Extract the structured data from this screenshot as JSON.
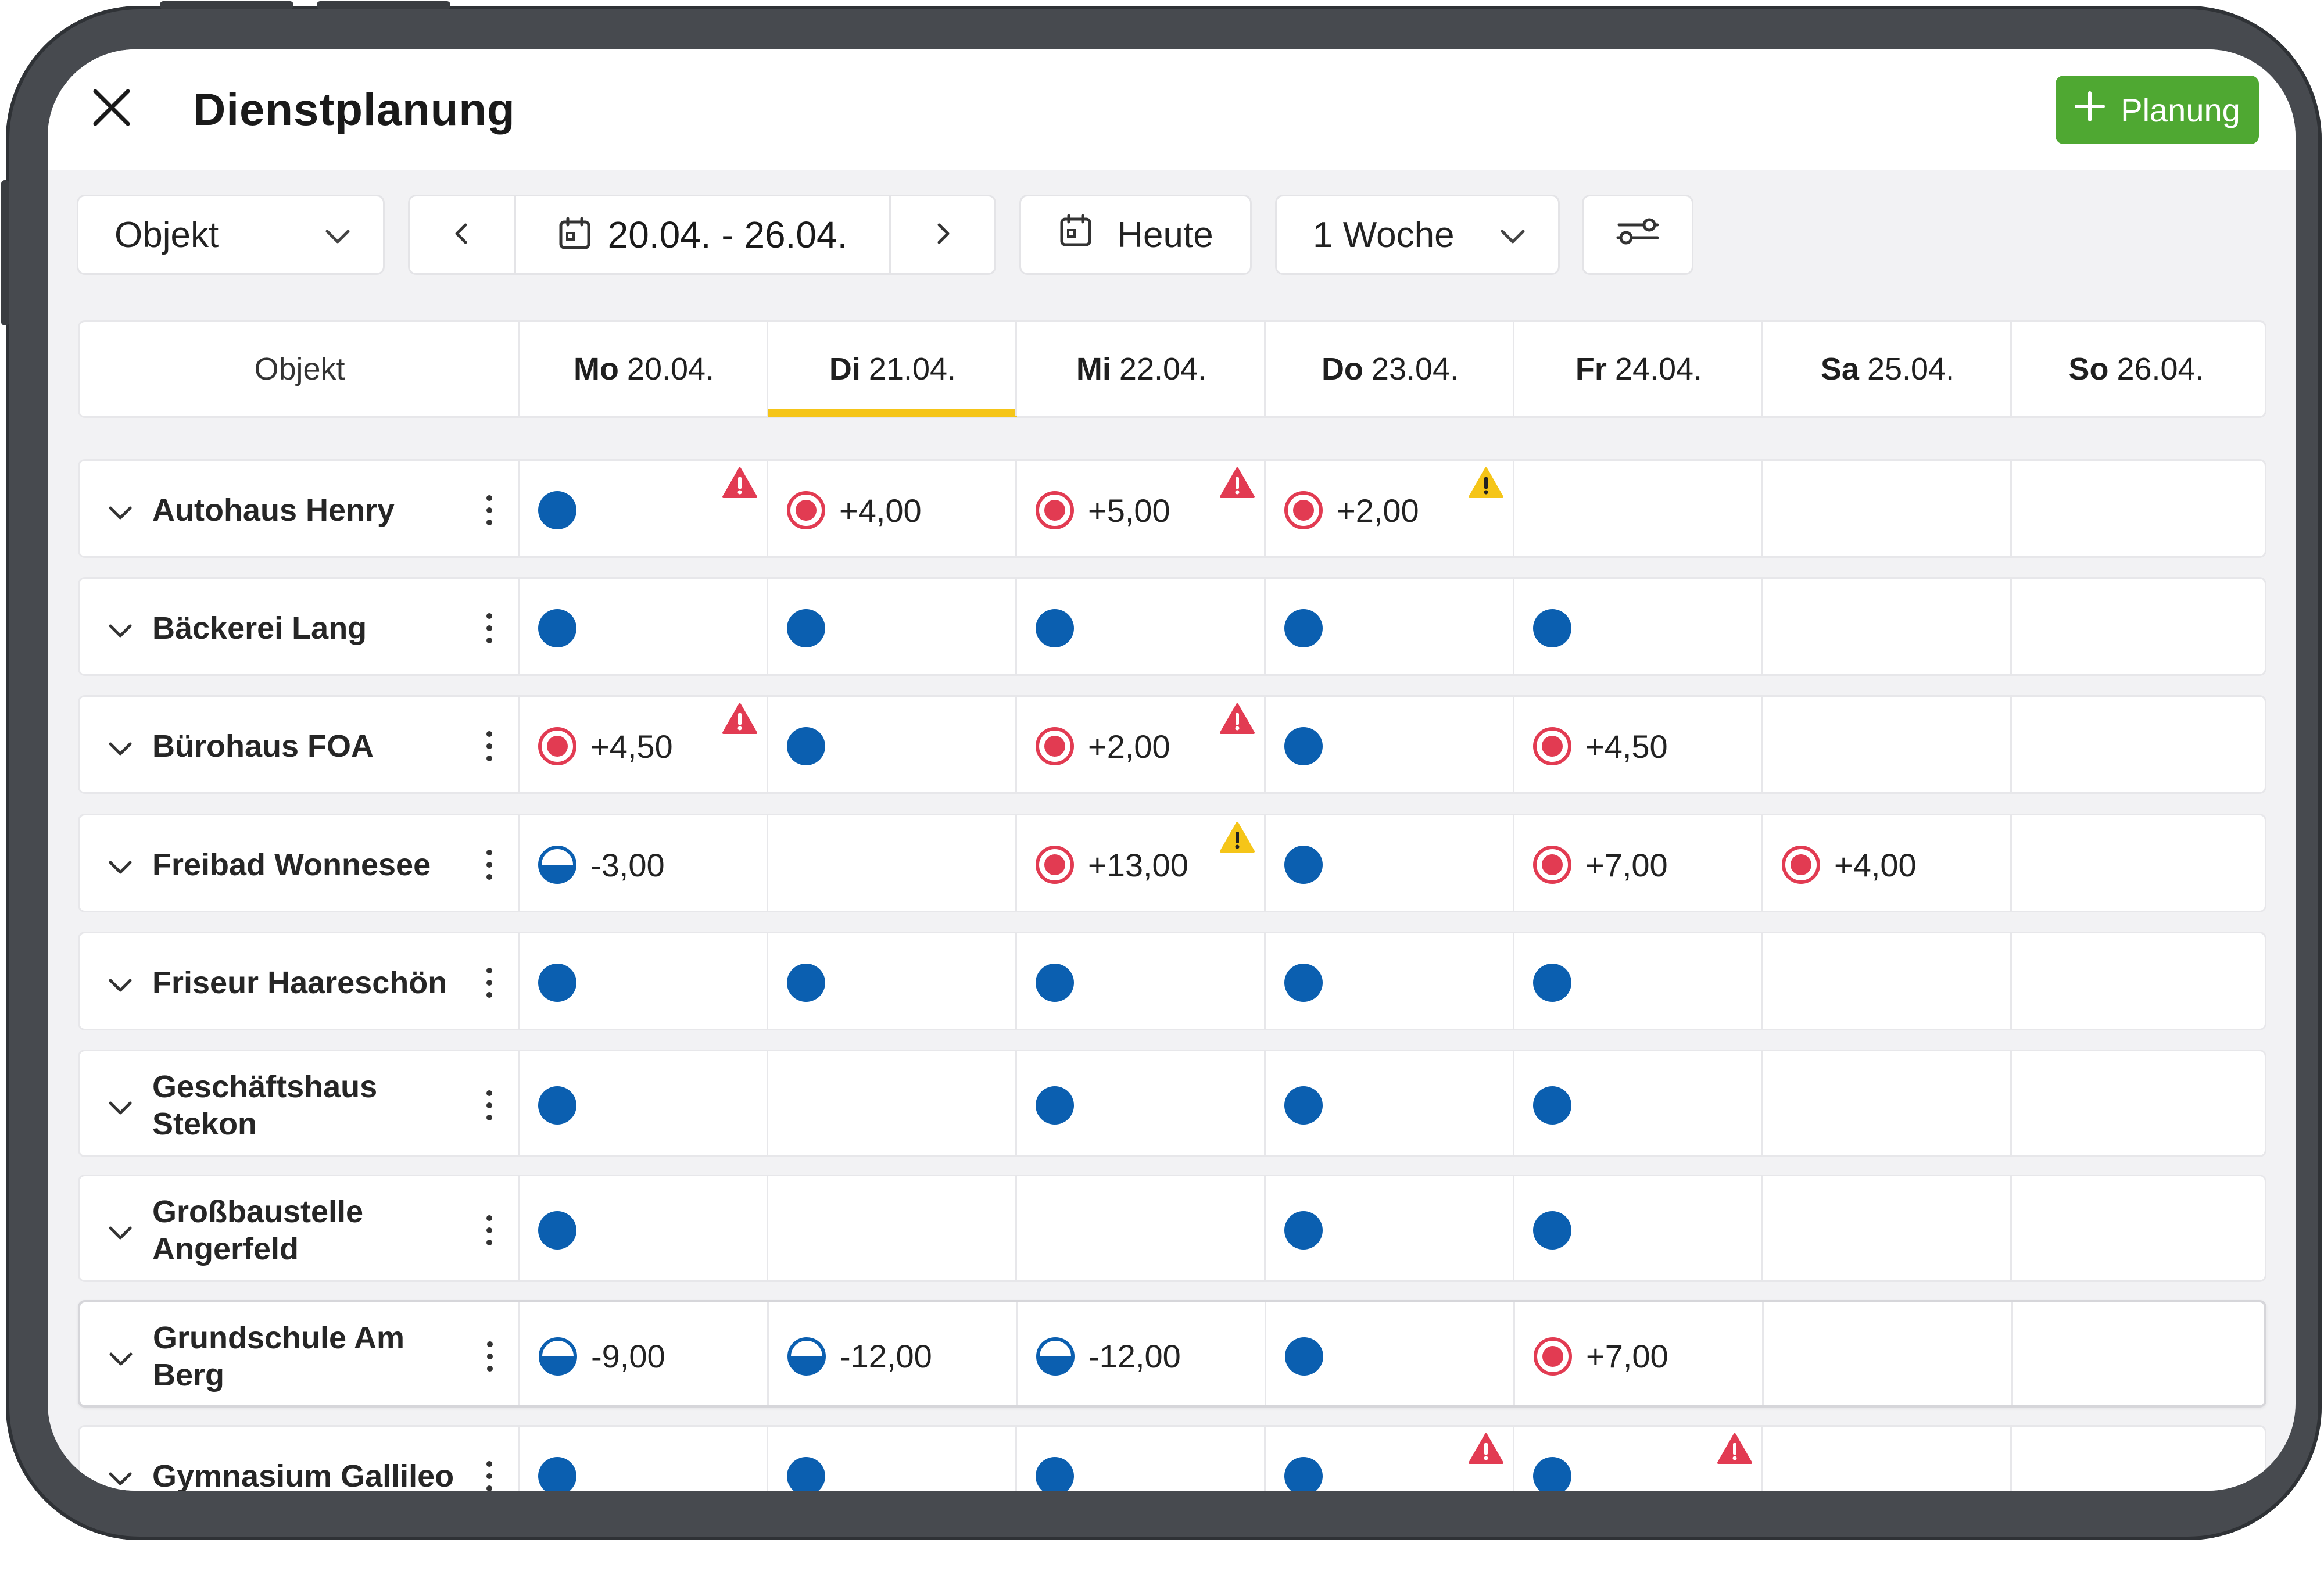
{
  "header": {
    "title": "Dienstplanung",
    "add_button_label": "Planung"
  },
  "toolbar": {
    "object_select": "Objekt",
    "date_range": "20.04. - 26.04.",
    "today_label": "Heute",
    "range_select": "1 Woche"
  },
  "colors": {
    "accent_green": "#4fa832",
    "today_marker": "#f5c518",
    "status_blue": "#0b5fb0",
    "status_red": "#e23b52",
    "warning_red": "#e23b52",
    "warning_yellow": "#f5c518"
  },
  "table": {
    "object_header": "Objekt",
    "days": [
      {
        "day": "Mo",
        "date": "20.04."
      },
      {
        "day": "Di",
        "date": "21.04."
      },
      {
        "day": "Mi",
        "date": "22.04."
      },
      {
        "day": "Do",
        "date": "23.04."
      },
      {
        "day": "Fr",
        "date": "24.04."
      },
      {
        "day": "Sa",
        "date": "25.04."
      },
      {
        "day": "So",
        "date": "26.04."
      }
    ],
    "rows": [
      {
        "name_line1": "Autohaus Henry",
        "name_line2": ""
      },
      {
        "name_line1": "Bäckerei Lang",
        "name_line2": ""
      },
      {
        "name_line1": "Bürohaus FOA",
        "name_line2": ""
      },
      {
        "name_line1": "Freibad Wonnesee",
        "name_line2": ""
      },
      {
        "name_line1": "Friseur Haareschön",
        "name_line2": ""
      },
      {
        "name_line1": "Geschäftshaus",
        "name_line2": "Stekon"
      },
      {
        "name_line1": "Großbaustelle",
        "name_line2": "Angerfeld"
      },
      {
        "name_line1": "Grundschule Am",
        "name_line2": "Berg"
      },
      {
        "name_line1": "Gymnasium Gallileo",
        "name_line2": ""
      }
    ],
    "cells": [
      [
        {
          "status": "full",
          "value": "",
          "warn": "red"
        },
        {
          "status": "over",
          "value": "+4,00",
          "warn": ""
        },
        {
          "status": "over",
          "value": "+5,00",
          "warn": "red"
        },
        {
          "status": "over",
          "value": "+2,00",
          "warn": "yellow"
        },
        {
          "status": "",
          "value": "",
          "warn": ""
        },
        {
          "status": "",
          "value": "",
          "warn": ""
        },
        {
          "status": "",
          "value": "",
          "warn": ""
        }
      ],
      [
        {
          "status": "full",
          "value": "",
          "warn": ""
        },
        {
          "status": "full",
          "value": "",
          "warn": ""
        },
        {
          "status": "full",
          "value": "",
          "warn": ""
        },
        {
          "status": "full",
          "value": "",
          "warn": ""
        },
        {
          "status": "full",
          "value": "",
          "warn": ""
        },
        {
          "status": "",
          "value": "",
          "warn": ""
        },
        {
          "status": "",
          "value": "",
          "warn": ""
        }
      ],
      [
        {
          "status": "over",
          "value": "+4,50",
          "warn": "red"
        },
        {
          "status": "full",
          "value": "",
          "warn": ""
        },
        {
          "status": "over",
          "value": "+2,00",
          "warn": "red"
        },
        {
          "status": "full",
          "value": "",
          "warn": ""
        },
        {
          "status": "over",
          "value": "+4,50",
          "warn": ""
        },
        {
          "status": "",
          "value": "",
          "warn": ""
        },
        {
          "status": "",
          "value": "",
          "warn": ""
        }
      ],
      [
        {
          "status": "under",
          "value": "-3,00",
          "warn": ""
        },
        {
          "status": "",
          "value": "",
          "warn": ""
        },
        {
          "status": "over",
          "value": "+13,00",
          "warn": "yellow"
        },
        {
          "status": "full",
          "value": "",
          "warn": ""
        },
        {
          "status": "over",
          "value": "+7,00",
          "warn": ""
        },
        {
          "status": "over",
          "value": "+4,00",
          "warn": ""
        },
        {
          "status": "",
          "value": "",
          "warn": ""
        }
      ],
      [
        {
          "status": "full",
          "value": "",
          "warn": ""
        },
        {
          "status": "full",
          "value": "",
          "warn": ""
        },
        {
          "status": "full",
          "value": "",
          "warn": ""
        },
        {
          "status": "full",
          "value": "",
          "warn": ""
        },
        {
          "status": "full",
          "value": "",
          "warn": ""
        },
        {
          "status": "",
          "value": "",
          "warn": ""
        },
        {
          "status": "",
          "value": "",
          "warn": ""
        }
      ],
      [
        {
          "status": "full",
          "value": "",
          "warn": ""
        },
        {
          "status": "",
          "value": "",
          "warn": ""
        },
        {
          "status": "full",
          "value": "",
          "warn": ""
        },
        {
          "status": "full",
          "value": "",
          "warn": ""
        },
        {
          "status": "full",
          "value": "",
          "warn": ""
        },
        {
          "status": "",
          "value": "",
          "warn": ""
        },
        {
          "status": "",
          "value": "",
          "warn": ""
        }
      ],
      [
        {
          "status": "full",
          "value": "",
          "warn": ""
        },
        {
          "status": "",
          "value": "",
          "warn": ""
        },
        {
          "status": "",
          "value": "",
          "warn": ""
        },
        {
          "status": "full",
          "value": "",
          "warn": ""
        },
        {
          "status": "full",
          "value": "",
          "warn": ""
        },
        {
          "status": "",
          "value": "",
          "warn": ""
        },
        {
          "status": "",
          "value": "",
          "warn": ""
        }
      ],
      [
        {
          "status": "under",
          "value": "-9,00",
          "warn": ""
        },
        {
          "status": "under",
          "value": "-12,00",
          "warn": ""
        },
        {
          "status": "under",
          "value": "-12,00",
          "warn": ""
        },
        {
          "status": "full",
          "value": "",
          "warn": ""
        },
        {
          "status": "over",
          "value": "+7,00",
          "warn": ""
        },
        {
          "status": "",
          "value": "",
          "warn": ""
        },
        {
          "status": "",
          "value": "",
          "warn": ""
        }
      ],
      [
        {
          "status": "full",
          "value": "",
          "warn": ""
        },
        {
          "status": "full",
          "value": "",
          "warn": ""
        },
        {
          "status": "full",
          "value": "",
          "warn": ""
        },
        {
          "status": "full",
          "value": "",
          "warn": "red"
        },
        {
          "status": "full",
          "value": "",
          "warn": "red"
        },
        {
          "status": "",
          "value": "",
          "warn": ""
        },
        {
          "status": "",
          "value": "",
          "warn": ""
        }
      ]
    ]
  }
}
